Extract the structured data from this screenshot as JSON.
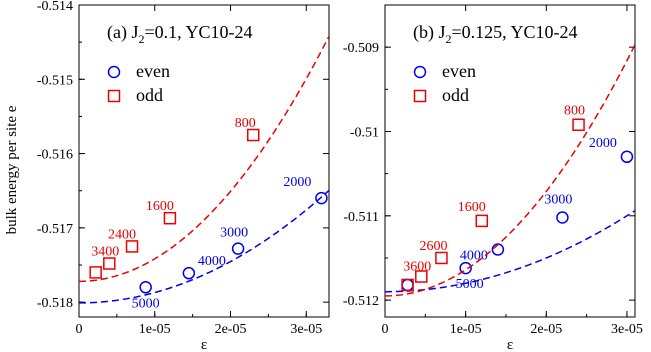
{
  "colors": {
    "even": "#0000ee",
    "odd": "#ee0000",
    "axis": "#000000"
  },
  "y_axis_title": "bulk energy per site e",
  "chart_data": [
    {
      "type": "scatter",
      "title": "(a) J",
      "title_sub": "2",
      "title_rest": "=0.1, YC10-24",
      "xlabel": "ε",
      "ylabel": "bulk energy per site e",
      "xlim": [
        0,
        3.3e-05
      ],
      "ylim": [
        -0.5182,
        -0.514
      ],
      "x_ticks": [
        0,
        1e-05,
        2e-05,
        3e-05
      ],
      "x_tick_labels": [
        "0",
        "1e-05",
        "2e-05",
        "3e-05"
      ],
      "y_ticks": [
        -0.518,
        -0.517,
        -0.516,
        -0.515,
        -0.514
      ],
      "y_tick_labels": [
        "-0.518",
        "-0.517",
        "-0.516",
        "-0.515",
        "-0.514"
      ],
      "legend": {
        "position": "top-left",
        "entries": [
          "even",
          "odd"
        ]
      },
      "series": [
        {
          "name": "even",
          "marker": "circle",
          "x": [
            8.8e-06,
            1.45e-05,
            2.1e-05,
            3.2e-05
          ],
          "y": [
            -0.5178,
            -0.51761,
            -0.51728,
            -0.5166
          ],
          "labels": [
            "5000",
            "4000",
            "3000",
            "2000"
          ],
          "fit": [
            -0.51801,
            0.0,
            1390000.0
          ]
        },
        {
          "name": "odd",
          "marker": "square",
          "x": [
            2.2e-06,
            4e-06,
            7e-06,
            1.2e-05,
            2.3e-05
          ],
          "y": [
            -0.5176,
            -0.51748,
            -0.51725,
            -0.51687,
            -0.51575
          ],
          "labels": [
            "3400",
            "2400",
            "1600",
            "800"
          ],
          "label_points": [
            1,
            2,
            3,
            4
          ],
          "fit": [
            -0.51772,
            0.0,
            3030000.0
          ]
        }
      ]
    },
    {
      "type": "scatter",
      "title": "(b) J",
      "title_sub": "2",
      "title_rest": "=0.125, YC10-24",
      "xlabel": "ε",
      "ylabel": "",
      "xlim": [
        0,
        3.1e-05
      ],
      "ylim": [
        -0.5122,
        -0.5085
      ],
      "x_ticks": [
        0,
        1e-05,
        2e-05,
        3e-05
      ],
      "x_tick_labels": [
        "0",
        "1e-05",
        "2e-05",
        "3e-05"
      ],
      "y_ticks": [
        -0.512,
        -0.511,
        -0.51,
        -0.509
      ],
      "y_tick_labels": [
        "-0.512",
        "-0.511",
        "-0.51",
        "-0.509"
      ],
      "legend": {
        "position": "top-left",
        "entries": [
          "even",
          "odd"
        ]
      },
      "series": [
        {
          "name": "even",
          "marker": "circle",
          "x": [
            2.8e-06,
            1e-05,
            1.4e-05,
            2.2e-05,
            3e-05
          ],
          "y": [
            -0.51182,
            -0.51162,
            -0.5114,
            -0.51102,
            -0.5103
          ],
          "labels": [
            "5000",
            "4000",
            "3000",
            "2000"
          ],
          "label_points": [
            1,
            2,
            3,
            4
          ],
          "fit": [
            -0.5119,
            0.0,
            1000000.0
          ]
        },
        {
          "name": "odd",
          "marker": "square",
          "x": [
            2.8e-06,
            4.5e-06,
            7e-06,
            1.2e-05,
            2.4e-05
          ],
          "y": [
            -0.51182,
            -0.51172,
            -0.5115,
            -0.51106,
            -0.50992
          ],
          "labels": [
            "3600",
            "2600",
            "1600",
            "800"
          ],
          "label_points": [
            1,
            2,
            3,
            4
          ],
          "fit": [
            -0.51195,
            0.0,
            3100000.0
          ]
        }
      ]
    }
  ]
}
